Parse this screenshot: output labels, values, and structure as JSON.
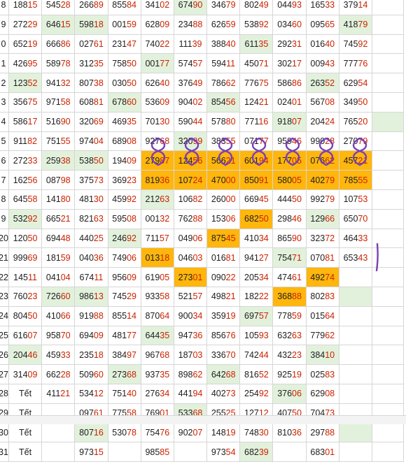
{
  "sheet": {
    "colors": {
      "highlight_green": "#e2f1dc",
      "highlight_orange": "#ffb60d",
      "last_digits": "#cc2200",
      "row_number": "#3344aa",
      "annotation": "#7a3fb5"
    },
    "rows": [
      {
        "n": "8",
        "cells": [
          "18815",
          "54528",
          "26689",
          "85584",
          "34102",
          "67490",
          "34679",
          "80249",
          "04493",
          "16533",
          "37914"
        ],
        "green": [
          5
        ],
        "orange": []
      },
      {
        "n": "9",
        "cells": [
          "27229",
          "64615",
          "59818",
          "00159",
          "62809",
          "23488",
          "62659",
          "53892",
          "03460",
          "09565",
          "41879"
        ],
        "green": [
          1,
          2,
          10
        ],
        "orange": []
      },
      {
        "n": "0",
        "cells": [
          "65219",
          "66686",
          "02761",
          "23147",
          "74022",
          "11139",
          "38840",
          "61135",
          "29231",
          "01640",
          "74592"
        ],
        "green": [
          7
        ],
        "orange": []
      },
      {
        "n": "1",
        "cells": [
          "42695",
          "58978",
          "31235",
          "75850",
          "00177",
          "57457",
          "59411",
          "45071",
          "30217",
          "00943",
          "77776"
        ],
        "green": [
          4
        ],
        "orange": []
      },
      {
        "n": "2",
        "cells": [
          "12352",
          "94132",
          "80738",
          "03050",
          "62640",
          "37649",
          "78662",
          "77675",
          "58686",
          "26352",
          "62954"
        ],
        "green": [
          0,
          9
        ],
        "orange": []
      },
      {
        "n": "3",
        "cells": [
          "35675",
          "97158",
          "60881",
          "67860",
          "53609",
          "90402",
          "85456",
          "12421",
          "02401",
          "56708",
          "34950"
        ],
        "green": [
          3,
          6
        ],
        "orange": []
      },
      {
        "n": "4",
        "cells": [
          "58617",
          "51690",
          "32069",
          "46935",
          "70130",
          "59044",
          "57880",
          "77116",
          "91807",
          "20424",
          "76520"
        ],
        "green": [
          8,
          11
        ],
        "orange": []
      },
      {
        "n": "5",
        "cells": [
          "91182",
          "75155",
          "97404",
          "68908",
          "92768",
          "32099",
          "38355",
          "07177",
          "95946",
          "99028",
          "27079"
        ],
        "green": [
          5
        ],
        "orange": []
      },
      {
        "n": "6",
        "cells": [
          "27233",
          "25938",
          "53850",
          "19409",
          "27987",
          "12456",
          "56621",
          "60194",
          "17705",
          "07662",
          "45721"
        ],
        "green": [
          1,
          2
        ],
        "orange": [
          4,
          5,
          6,
          7,
          8,
          9,
          10
        ]
      },
      {
        "n": "7",
        "cells": [
          "16256",
          "08798",
          "37573",
          "36923",
          "81936",
          "10724",
          "47000",
          "85091",
          "58005",
          "40279",
          "78555"
        ],
        "green": [],
        "orange": [
          4,
          5,
          6,
          7,
          8,
          9,
          10
        ]
      },
      {
        "n": "8",
        "cells": [
          "64558",
          "14180",
          "48130",
          "45992",
          "21263",
          "10682",
          "26000",
          "66945",
          "44450",
          "99279",
          "10753"
        ],
        "green": [
          4
        ],
        "orange": []
      },
      {
        "n": "9",
        "cells": [
          "53292",
          "66521",
          "82163",
          "59508",
          "00132",
          "76288",
          "15306",
          "68250",
          "29846",
          "12966",
          "65070"
        ],
        "green": [
          0,
          9
        ],
        "orange": [
          7
        ]
      },
      {
        "n": "20",
        "cells": [
          "12050",
          "69448",
          "44025",
          "24692",
          "71157",
          "04906",
          "87545",
          "41034",
          "86590",
          "32372",
          "46433"
        ],
        "green": [
          3
        ],
        "orange": [
          6
        ]
      },
      {
        "n": "21",
        "cells": [
          "99969",
          "18159",
          "04036",
          "74906",
          "01318",
          "04603",
          "01681",
          "94127",
          "75471",
          "07081",
          "65343"
        ],
        "green": [
          8
        ],
        "orange": [
          4
        ]
      },
      {
        "n": "22",
        "cells": [
          "14511",
          "04104",
          "67411",
          "95609",
          "61905",
          "27301",
          "09022",
          "20534",
          "47461",
          "49274",
          ""
        ],
        "green": [],
        "orange": [
          5,
          9
        ]
      },
      {
        "n": "23",
        "cells": [
          "76023",
          "72660",
          "98613",
          "74529",
          "93358",
          "52157",
          "49821",
          "18222",
          "36888",
          "80283",
          ""
        ],
        "green": [
          1,
          2,
          10
        ],
        "orange": [
          8
        ]
      },
      {
        "n": "24",
        "cells": [
          "80450",
          "41066",
          "91988",
          "85514",
          "87064",
          "90034",
          "35919",
          "69757",
          "77859",
          "01564",
          ""
        ],
        "green": [
          7
        ],
        "orange": []
      },
      {
        "n": "25",
        "cells": [
          "61607",
          "95870",
          "69409",
          "48177",
          "64435",
          "94736",
          "85676",
          "10593",
          "63263",
          "77962",
          ""
        ],
        "green": [
          4
        ],
        "orange": []
      },
      {
        "n": "26",
        "cells": [
          "20446",
          "45933",
          "23518",
          "38497",
          "96768",
          "18703",
          "33670",
          "74244",
          "43223",
          "38410",
          ""
        ],
        "green": [
          0,
          9
        ],
        "orange": []
      },
      {
        "n": "27",
        "cells": [
          "31409",
          "66228",
          "50960",
          "27368",
          "93735",
          "89862",
          "64268",
          "81652",
          "92519",
          "02583",
          ""
        ],
        "green": [
          3,
          6
        ],
        "orange": []
      },
      {
        "n": "28",
        "cells": [
          "Tết",
          "41121",
          "53412",
          "75140",
          "27634",
          "44194",
          "40273",
          "25492",
          "37606",
          "62908",
          ""
        ],
        "green": [
          8
        ],
        "orange": []
      },
      {
        "n": "29",
        "cells": [
          "Tết",
          "",
          "09761",
          "77558",
          "76901",
          "53368",
          "25525",
          "12712",
          "40750",
          "70473",
          ""
        ],
        "green": [
          5
        ],
        "orange": []
      },
      {
        "n": "30",
        "cells": [
          "Tết",
          "",
          "80716",
          "53078",
          "75476",
          "90207",
          "14819",
          "74830",
          "81036",
          "29788",
          ""
        ],
        "green": [
          2,
          10
        ],
        "orange": []
      },
      {
        "n": "31",
        "cells": [
          "Tết",
          "",
          "97315",
          "",
          "98585",
          "",
          "97354",
          "68239",
          "",
          "68301",
          ""
        ],
        "green": [
          7
        ],
        "orange": []
      }
    ]
  }
}
